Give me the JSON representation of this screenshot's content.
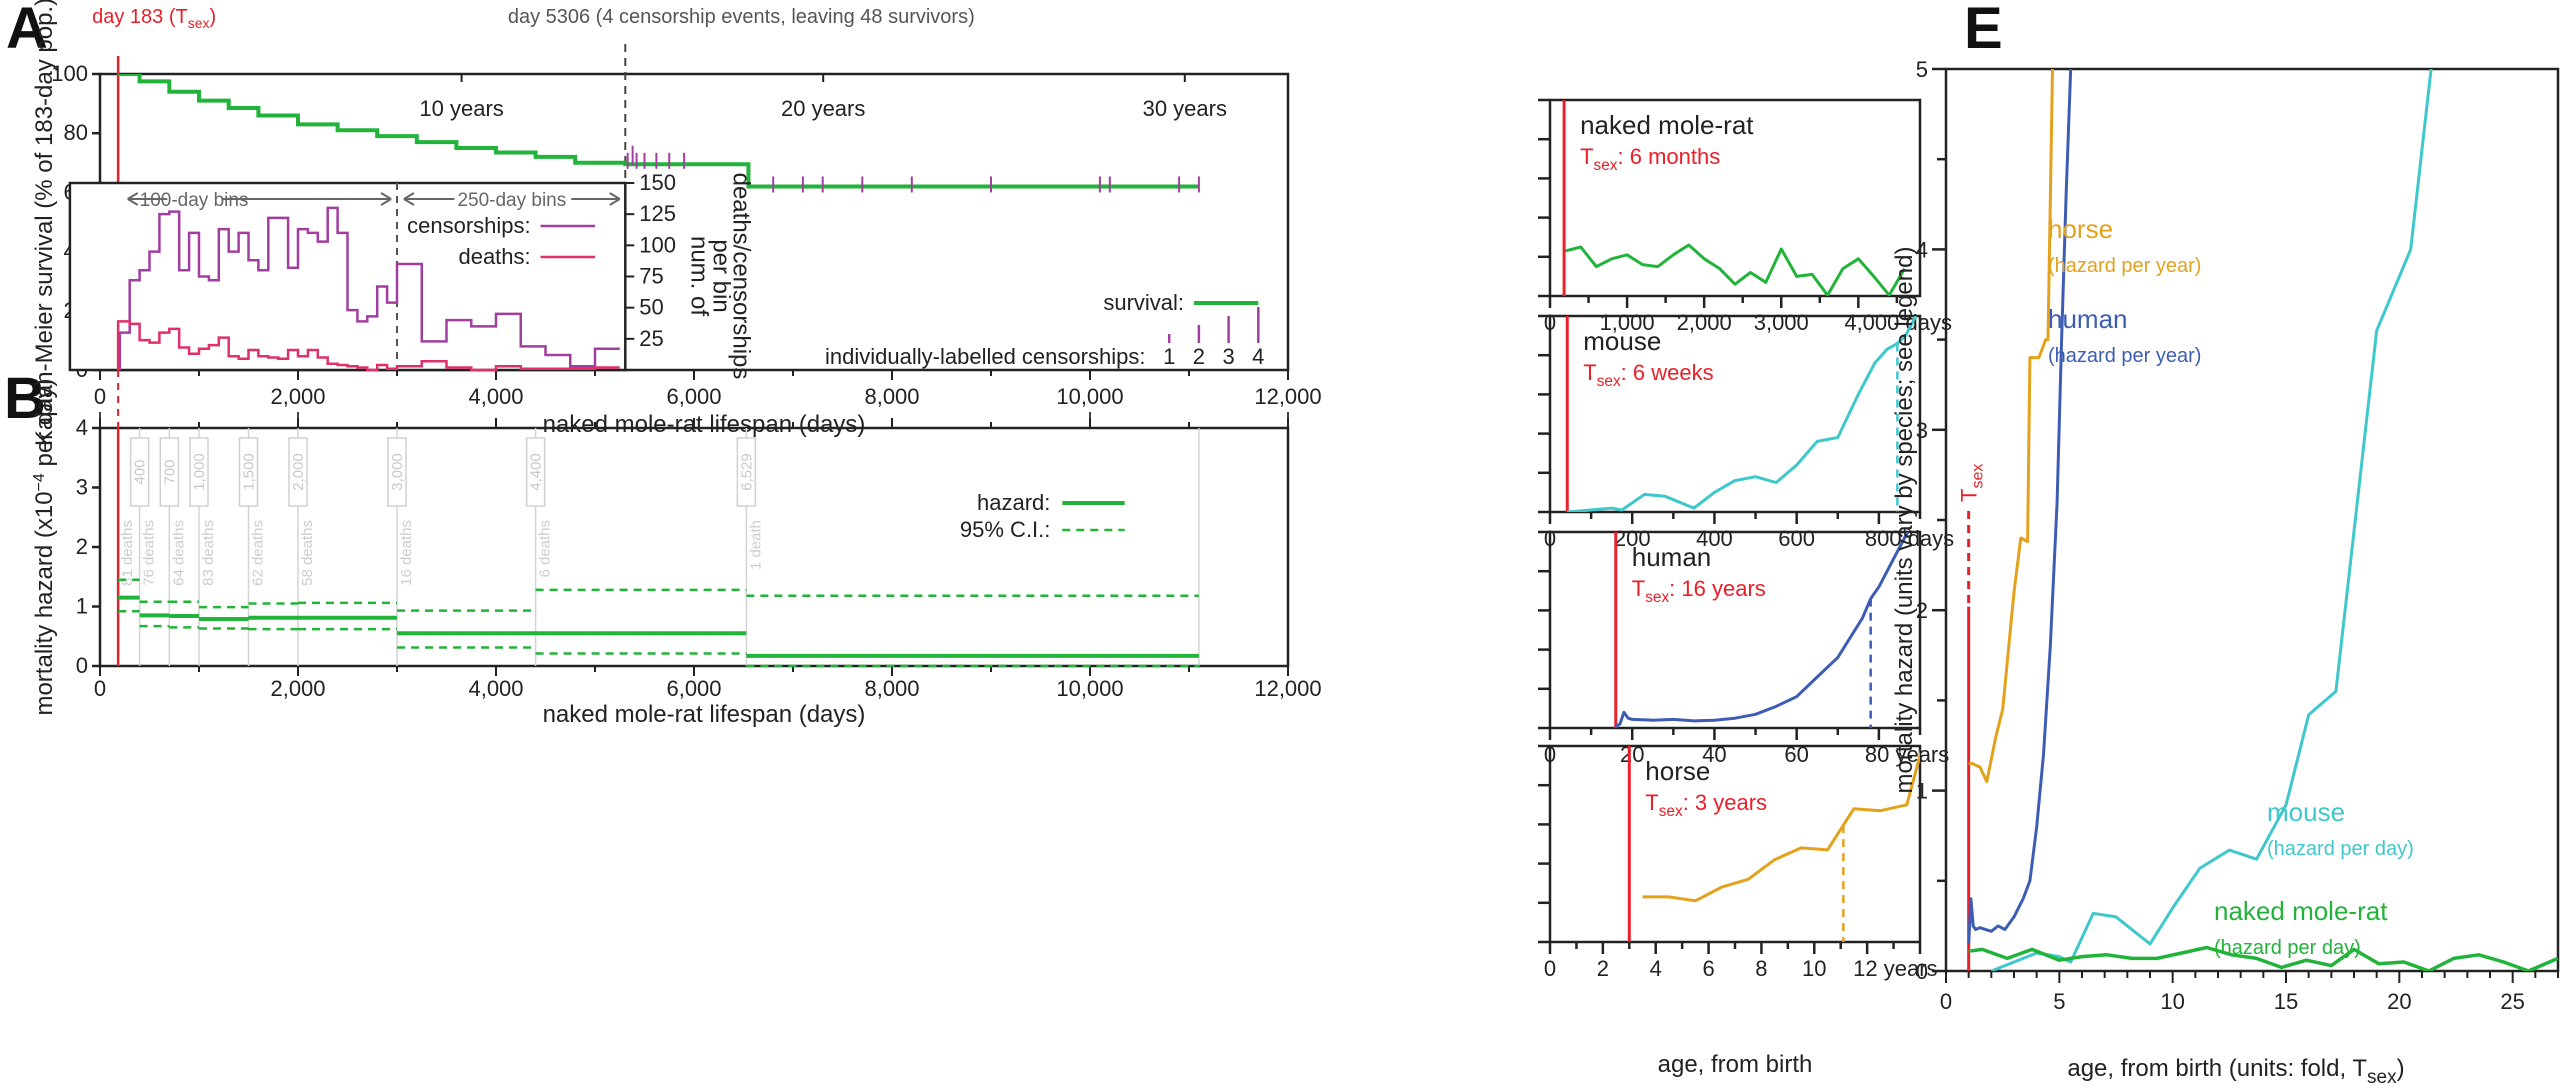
{
  "colors": {
    "nmr": "#22b33a",
    "mouse": "#3ec8cc",
    "human": "#3d5db5",
    "horse": "#e3a11c",
    "tsex": "#e8202a",
    "censor": "#a23ea0",
    "deaths": "#e0306a",
    "axis": "#222222"
  },
  "chart_data": [
    {
      "id": "A",
      "panel_label": "A",
      "type": "line",
      "title": "",
      "annotations": {
        "tsex": "day 183 (T",
        "tsex_sub": "sex",
        "tsex_close": ")",
        "censor_day": "day 5306 (4 censorship events, leaving 48 survivors)",
        "years": [
          "10 years",
          "20 years",
          "30 years"
        ],
        "bins_100": "100-day bins",
        "bins_250": "250-day bins"
      },
      "xlabel": "naked mole-rat lifespan (days)",
      "ylabel": "Kaplan-Meier survival (% of 183-day pop.)",
      "y2label_1": "num. of",
      "y2label_2": "deaths/censorships",
      "y2label_3": "per bin",
      "xlim": [
        0,
        12000
      ],
      "ylim": [
        0,
        100
      ],
      "y2lim": [
        0,
        150
      ],
      "xticks": [
        "0",
        "2,000",
        "4,000",
        "6,000",
        "8,000",
        "10,000",
        "12,000"
      ],
      "yticks": [
        "0",
        "20",
        "40",
        "60",
        "80",
        "100"
      ],
      "y2ticks": [
        "25",
        "50",
        "75",
        "100",
        "125",
        "150"
      ],
      "legend": {
        "censorships": "censorships:",
        "deaths": "deaths:",
        "survival": "survival:",
        "individual": "individually-labelled censorships:",
        "individual_nums": [
          "1",
          "2",
          "3",
          "4"
        ]
      },
      "survival": {
        "x": [
          183,
          400,
          700,
          1000,
          1300,
          1600,
          2000,
          2400,
          2800,
          3200,
          3600,
          4000,
          4400,
          4800,
          5306,
          5306,
          6400,
          6550,
          6550,
          11100
        ],
        "y": [
          100,
          97.5,
          94,
          91,
          88.5,
          86,
          83,
          81,
          79,
          77,
          75,
          73.5,
          72,
          70,
          70,
          69.5,
          69.5,
          66,
          62,
          62
        ]
      },
      "censor_ticks_x": [
        5330,
        5420,
        5500,
        5620,
        5750,
        5900,
        6800,
        7100,
        7300,
        7700,
        8200,
        9000,
        10100,
        10200,
        10900,
        11100
      ],
      "censorship_hist": {
        "edges": [
          200,
          300,
          400,
          500,
          600,
          700,
          800,
          900,
          1000,
          1100,
          1200,
          1300,
          1400,
          1500,
          1600,
          1700,
          1800,
          1900,
          2000,
          2100,
          2200,
          2300,
          2400,
          2500,
          2600,
          2700,
          2800,
          2900,
          3000,
          3250,
          3500,
          3750,
          4000,
          4250,
          4500,
          4750,
          5000,
          5250
        ],
        "values": [
          30,
          72,
          80,
          95,
          125,
          127,
          80,
          110,
          75,
          72,
          113,
          95,
          110,
          88,
          80,
          122,
          122,
          82,
          113,
          110,
          103,
          130,
          110,
          48,
          39,
          43,
          67,
          54,
          85,
          23,
          40,
          35,
          45,
          19,
          12,
          3,
          17
        ]
      },
      "deaths_hist": {
        "edges": [
          183,
          300,
          400,
          500,
          600,
          700,
          800,
          900,
          1000,
          1100,
          1200,
          1300,
          1400,
          1500,
          1600,
          1700,
          1800,
          1900,
          2000,
          2100,
          2200,
          2300,
          2400,
          2500,
          2600,
          2700,
          2800,
          2900,
          3000,
          3250,
          3500,
          3750,
          4000,
          4250,
          4500,
          4750,
          5000,
          5250
        ],
        "values": [
          39,
          37,
          24,
          22,
          30,
          33,
          18,
          13,
          17,
          20,
          26,
          11,
          9,
          16,
          11,
          10,
          9,
          16,
          11,
          16,
          10,
          5,
          4,
          3,
          2,
          0,
          4,
          1,
          3,
          7,
          2,
          0,
          3,
          1,
          1,
          1,
          2
        ]
      }
    },
    {
      "id": "B",
      "panel_label": "B",
      "type": "line",
      "xlabel": "naked mole-rat lifespan (days)",
      "ylabel": "mortality hazard (x10",
      "ylabel_sup": "−4",
      "ylabel_end": " per day)",
      "xlim": [
        0,
        12000
      ],
      "ylim": [
        0,
        4
      ],
      "xticks": [
        "0",
        "2,000",
        "4,000",
        "6,000",
        "8,000",
        "10,000",
        "12,000"
      ],
      "yticks": [
        "0",
        "1",
        "2",
        "3",
        "4"
      ],
      "legend": {
        "hazard": "hazard:",
        "ci": "95% C.I.:"
      },
      "boundaries": [
        183,
        400,
        700,
        1000,
        1500,
        2000,
        3000,
        4400,
        6529,
        11100
      ],
      "boundary_labels": [
        "400",
        "700",
        "1,000",
        "1,500",
        "2,000",
        "3,000",
        "4,400",
        "6,529"
      ],
      "death_labels": [
        "81 deaths",
        "76 deaths",
        "64 deaths",
        "83 deaths",
        "62 deaths",
        "58 deaths",
        "16 deaths",
        "6 deaths",
        "1 death"
      ],
      "hazard": [
        1.15,
        0.85,
        0.84,
        0.79,
        0.81,
        0.81,
        0.55,
        0.55,
        0.17
      ],
      "ci_upper": [
        1.45,
        1.08,
        1.08,
        0.99,
        1.05,
        1.06,
        0.93,
        1.28,
        1.18
      ],
      "ci_lower": [
        0.92,
        0.67,
        0.65,
        0.63,
        0.62,
        0.62,
        0.31,
        0.21,
        0.0
      ]
    },
    {
      "id": "C",
      "type": "line",
      "species": "naked mole-rat",
      "tsex_prefix": "T",
      "tsex_sub": "sex",
      "tsex_text": ": 6 months",
      "xlim": [
        0,
        4800
      ],
      "ylim": [
        0,
        5
      ],
      "tsex_x": 183,
      "xticks": [
        "0",
        "1,000",
        "2,000",
        "3,000",
        "4,000 days"
      ],
      "x": [
        200,
        400,
        600,
        800,
        1000,
        1200,
        1400,
        1600,
        1800,
        2000,
        2200,
        2400,
        2600,
        2800,
        3000,
        3200,
        3400,
        3600,
        3800,
        4000,
        4200,
        4400,
        4600
      ],
      "y": [
        1.15,
        1.25,
        0.75,
        0.95,
        1.05,
        0.8,
        0.75,
        1.05,
        1.3,
        0.95,
        0.7,
        0.3,
        0.6,
        0.35,
        1.2,
        0.5,
        0.55,
        0.02,
        0.7,
        0.95,
        0.5,
        0.02,
        0.7
      ]
    },
    {
      "id": "D",
      "type": "line",
      "species": "mouse",
      "tsex_prefix": "T",
      "tsex_sub": "sex",
      "tsex_text": ": 6 weeks",
      "xlim": [
        0,
        900
      ],
      "ylim": [
        0,
        5
      ],
      "tsex_x": 42,
      "median_x": 845,
      "xticks": [
        "0",
        "200",
        "400",
        "600",
        "800 days"
      ],
      "x": [
        42,
        100,
        150,
        175,
        230,
        280,
        350,
        400,
        450,
        500,
        550,
        600,
        650,
        700,
        750,
        790,
        820,
        845,
        865,
        890
      ],
      "y": [
        0,
        0.05,
        0.1,
        0.05,
        0.45,
        0.4,
        0.1,
        0.5,
        0.8,
        0.9,
        0.75,
        1.2,
        1.8,
        1.9,
        3.0,
        3.8,
        4.15,
        4.3,
        4.5,
        5
      ]
    },
    {
      "id": "E",
      "type": "line",
      "species": "human",
      "tsex_prefix": "T",
      "tsex_sub": "sex",
      "tsex_text": ": 16 years",
      "xlim": [
        0,
        90
      ],
      "ylim": [
        0,
        5
      ],
      "tsex_x": 16,
      "median_x": 78,
      "xticks": [
        "0",
        "20",
        "40",
        "60",
        "80 years"
      ],
      "x": [
        16,
        17,
        18,
        19,
        20,
        25,
        30,
        35,
        40,
        45,
        50,
        55,
        60,
        65,
        70,
        73,
        76,
        78,
        80,
        82,
        84,
        86,
        87
      ],
      "y": [
        0.05,
        0.1,
        0.4,
        0.25,
        0.22,
        0.2,
        0.22,
        0.18,
        0.2,
        0.25,
        0.35,
        0.55,
        0.8,
        1.3,
        1.8,
        2.3,
        2.8,
        3.3,
        3.6,
        4.0,
        4.4,
        4.8,
        5
      ]
    },
    {
      "id": "F",
      "type": "line",
      "species": "horse",
      "tsex_prefix": "T",
      "tsex_sub": "sex",
      "tsex_text": ": 3 years",
      "xlabel": "age, from birth",
      "xlim": [
        0,
        14
      ],
      "ylim": [
        0,
        5
      ],
      "tsex_x": 3,
      "median_x": 11.1,
      "xticks": [
        "0",
        "2",
        "4",
        "6",
        "8",
        "10",
        "12 years"
      ],
      "x": [
        3.5,
        4.5,
        5.5,
        6.5,
        7.5,
        8.5,
        9.5,
        10.5,
        11.5,
        12.5,
        13.5,
        14.1
      ],
      "y": [
        1.15,
        1.15,
        1.05,
        1.4,
        1.6,
        2.1,
        2.4,
        2.35,
        3.4,
        3.35,
        3.5,
        5
      ]
    },
    {
      "id": "G",
      "panel_label": "E",
      "type": "line",
      "xlabel": "age, from birth (units: fold, T",
      "xlabel_sub": "sex",
      "xlabel_end": ")",
      "ylabel": "mortality hazard (units vary by species; see legend)",
      "tsex_label": "T",
      "tsex_sub": "sex",
      "xlim": [
        0,
        27
      ],
      "ylim": [
        0,
        5
      ],
      "xticks": [
        "0",
        "5",
        "10",
        "15",
        "20",
        "25"
      ],
      "yticks": [
        "0",
        "1",
        "2",
        "3",
        "4",
        "5"
      ],
      "legend": [
        {
          "key": "horse",
          "name": "horse",
          "unit": "(hazard per year)"
        },
        {
          "key": "human",
          "name": "human",
          "unit": "(hazard per year)"
        },
        {
          "key": "mouse",
          "name": "mouse",
          "unit": "(hazard per day)"
        },
        {
          "key": "nmr",
          "name": "naked mole-rat",
          "unit": "(hazard per day)"
        }
      ],
      "series": [
        {
          "key": "horse",
          "x": [
            1.0,
            1.15,
            1.5,
            1.8,
            2.2,
            2.5,
            3.0,
            3.3,
            3.6,
            3.7,
            4.1,
            4.4,
            4.5,
            4.7
          ],
          "y": [
            1.15,
            1.15,
            1.13,
            1.05,
            1.3,
            1.45,
            2.1,
            2.4,
            2.38,
            3.4,
            3.4,
            3.5,
            3.5,
            5
          ]
        },
        {
          "key": "human",
          "x": [
            1.0,
            1.1,
            1.2,
            1.3,
            1.5,
            2.0,
            2.3,
            2.6,
            3.0,
            3.4,
            3.7,
            4.0,
            4.3,
            4.6,
            4.9,
            5.1,
            5.3,
            5.5
          ],
          "y": [
            0.15,
            0.4,
            0.25,
            0.23,
            0.24,
            0.22,
            0.25,
            0.23,
            0.3,
            0.4,
            0.5,
            0.8,
            1.2,
            1.8,
            2.6,
            3.5,
            4.3,
            5
          ]
        },
        {
          "key": "mouse",
          "x": [
            2.0,
            3.0,
            4.0,
            5.0,
            5.5,
            6.5,
            7.5,
            9.0,
            10.0,
            11.2,
            12.5,
            13.7,
            15.0,
            16.0,
            17.2,
            19.0,
            20.5,
            21.4
          ],
          "y": [
            0,
            0.05,
            0.1,
            0.08,
            0.05,
            0.32,
            0.3,
            0.15,
            0.35,
            0.57,
            0.67,
            0.62,
            0.92,
            1.42,
            1.55,
            3.55,
            4.0,
            5
          ]
        },
        {
          "key": "nmr",
          "x": [
            1.0,
            1.6,
            2.7,
            3.8,
            5.0,
            6.0,
            7.1,
            8.2,
            9.3,
            10.4,
            11.5,
            12.6,
            13.7,
            14.8,
            15.9,
            17.0,
            18.0,
            19.1,
            20.2,
            21.3,
            22.4,
            23.5,
            24.6,
            25.7,
            27.0
          ],
          "y": [
            0.11,
            0.12,
            0.07,
            0.12,
            0.06,
            0.08,
            0.09,
            0.07,
            0.07,
            0.1,
            0.13,
            0.09,
            0.07,
            0.02,
            0.06,
            0.03,
            0.12,
            0.04,
            0.05,
            0.0,
            0.07,
            0.09,
            0.05,
            0.0,
            0.07
          ]
        }
      ]
    }
  ]
}
